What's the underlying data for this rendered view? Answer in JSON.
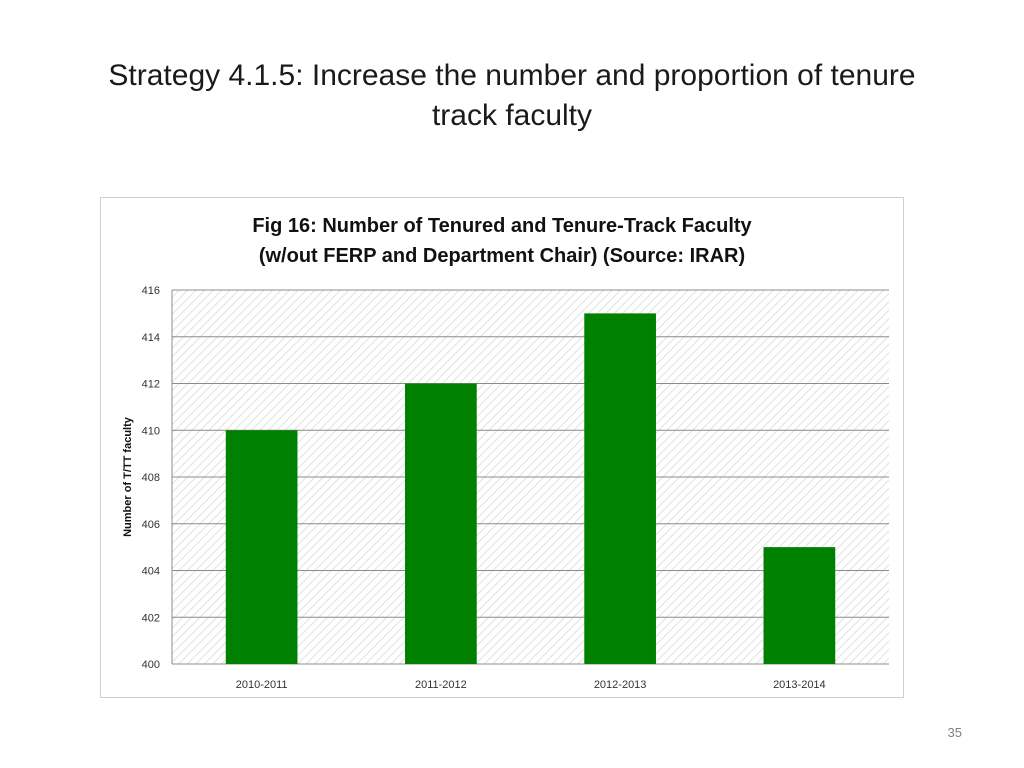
{
  "slide": {
    "title_line1": "Strategy 4.1.5: Increase the number and proportion of tenure",
    "title_line2": "track faculty",
    "page_number": "35"
  },
  "colors": {
    "bar": "#008000",
    "grid": "#8c8c8c",
    "hatch": "#e2e2e2"
  },
  "chart_data": {
    "type": "bar",
    "title_line1": "Fig 16: Number of Tenured and Tenure-Track Faculty",
    "title_line2": "(w/out FERP and Department Chair) (Source: IRAR)",
    "xlabel": "",
    "ylabel": "Number of T/TT faculty",
    "categories": [
      "2010-2011",
      "2011-2012",
      "2012-2013",
      "2013-2014"
    ],
    "values": [
      410,
      412,
      415,
      405
    ],
    "ylim": [
      400,
      416
    ],
    "yticks": [
      400,
      402,
      404,
      406,
      408,
      410,
      412,
      414,
      416
    ],
    "grid": true,
    "legend": "none"
  }
}
